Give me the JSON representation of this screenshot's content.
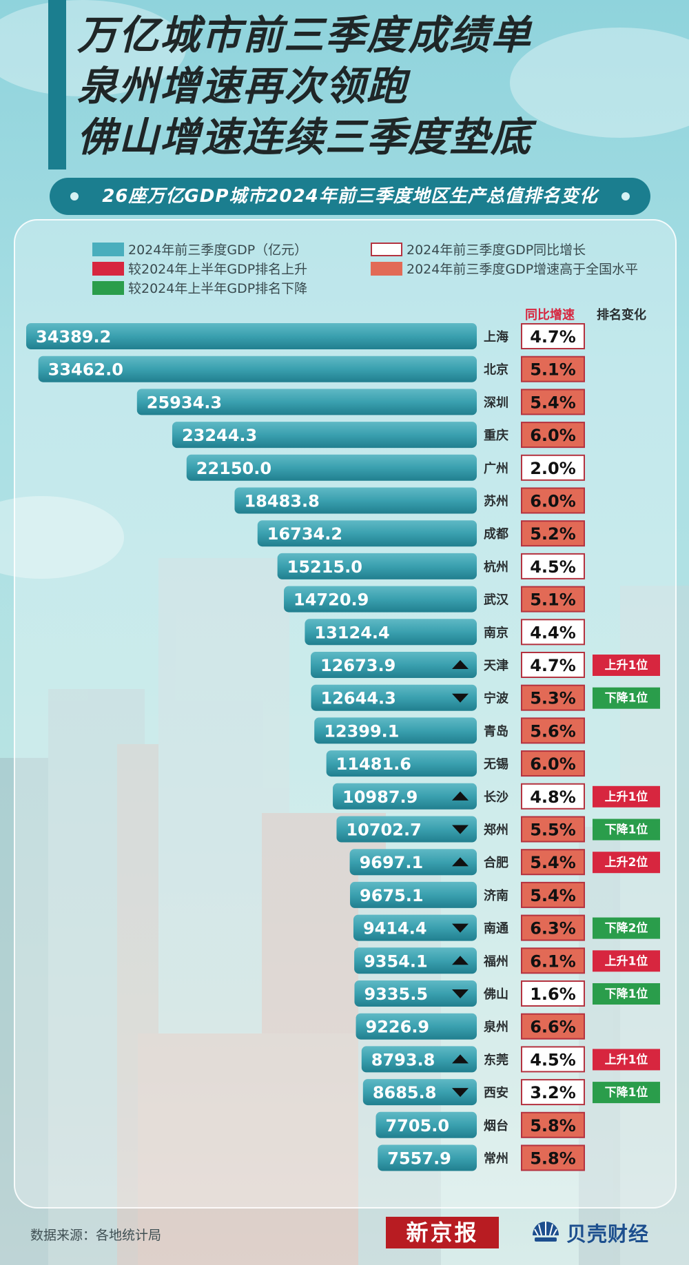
{
  "title": {
    "lines": [
      "万亿城市前三季度成绩单",
      "泉州增速再次领跑",
      "佛山增速连续三季度垫底"
    ]
  },
  "subtitle": "26座万亿GDP城市2024年前三季度地区生产总值排名变化",
  "legend": {
    "gdp": "2024年前三季度GDP（亿元）",
    "growth": "2024年前三季度GDP同比增长",
    "rank_up": "较2024年上半年GDP排名上升",
    "above_national": "2024年前三季度GDP增速高于全国水平",
    "rank_down": "较2024年上半年GDP排名下降"
  },
  "column_headers": {
    "growth": "同比增速",
    "rank": "排名变化"
  },
  "colors": {
    "bar": "#2a8d9d",
    "bar_light": "#6cc3cd",
    "growth_above": "#e26a56",
    "growth_border": "#b4323f",
    "rank_up": "#d7263f",
    "rank_down": "#2a9d4b"
  },
  "chart_data": {
    "type": "bar",
    "orientation": "horizontal",
    "categories": [
      "上海",
      "北京",
      "深圳",
      "重庆",
      "广州",
      "苏州",
      "成都",
      "杭州",
      "武汉",
      "南京",
      "天津",
      "宁波",
      "青岛",
      "无锡",
      "长沙",
      "郑州",
      "合肥",
      "济南",
      "南通",
      "福州",
      "佛山",
      "泉州",
      "东莞",
      "西安",
      "烟台",
      "常州"
    ],
    "series": [
      {
        "name": "2024年前三季度GDP（亿元）",
        "values": [
          34389.2,
          33462.0,
          25934.3,
          23244.3,
          22150.0,
          18483.8,
          16734.2,
          15215.0,
          14720.9,
          13124.4,
          12673.9,
          12644.3,
          12399.1,
          11481.6,
          10987.9,
          10702.7,
          9697.1,
          9675.1,
          9414.4,
          9354.1,
          9335.5,
          9226.9,
          8793.8,
          8685.8,
          7705.0,
          7557.9
        ]
      }
    ],
    "value_labels": [
      "34389.2",
      "33462.0",
      "25934.3",
      "23244.3",
      "22150.0",
      "18483.8",
      "16734.2",
      "15215.0",
      "14720.9",
      "13124.4",
      "12673.9",
      "12644.3",
      "12399.1",
      "11481.6",
      "10987.9",
      "10702.7",
      "9697.1",
      "9675.1",
      "9414.4",
      "9354.1",
      "9335.5",
      "9226.9",
      "8793.8",
      "8685.8",
      "7705.0",
      "7557.9"
    ],
    "growth": [
      "4.7%",
      "5.1%",
      "5.4%",
      "6.0%",
      "2.0%",
      "6.0%",
      "5.2%",
      "4.5%",
      "5.1%",
      "4.4%",
      "4.7%",
      "5.3%",
      "5.6%",
      "6.0%",
      "4.8%",
      "5.5%",
      "5.4%",
      "5.4%",
      "6.3%",
      "6.1%",
      "1.6%",
      "6.6%",
      "4.5%",
      "3.2%",
      "5.8%",
      "5.8%"
    ],
    "above_national": [
      false,
      true,
      true,
      true,
      false,
      true,
      true,
      false,
      true,
      false,
      false,
      true,
      true,
      true,
      false,
      true,
      true,
      true,
      true,
      true,
      false,
      true,
      false,
      false,
      true,
      true
    ],
    "rank_change": [
      "",
      "",
      "",
      "",
      "",
      "",
      "",
      "",
      "",
      "",
      "上升1位",
      "下降1位",
      "",
      "",
      "上升1位",
      "下降1位",
      "上升2位",
      "",
      "下降2位",
      "上升1位",
      "下降1位",
      "",
      "上升1位",
      "下降1位",
      "",
      ""
    ],
    "rank_direction": [
      "",
      "",
      "",
      "",
      "",
      "",
      "",
      "",
      "",
      "",
      "up",
      "down",
      "",
      "",
      "up",
      "down",
      "up",
      "",
      "down",
      "up",
      "down",
      "",
      "up",
      "down",
      "",
      ""
    ]
  },
  "source": "数据来源：各地统计局",
  "logos": {
    "xinjingbao": "新京报",
    "beike": "贝壳财经"
  }
}
